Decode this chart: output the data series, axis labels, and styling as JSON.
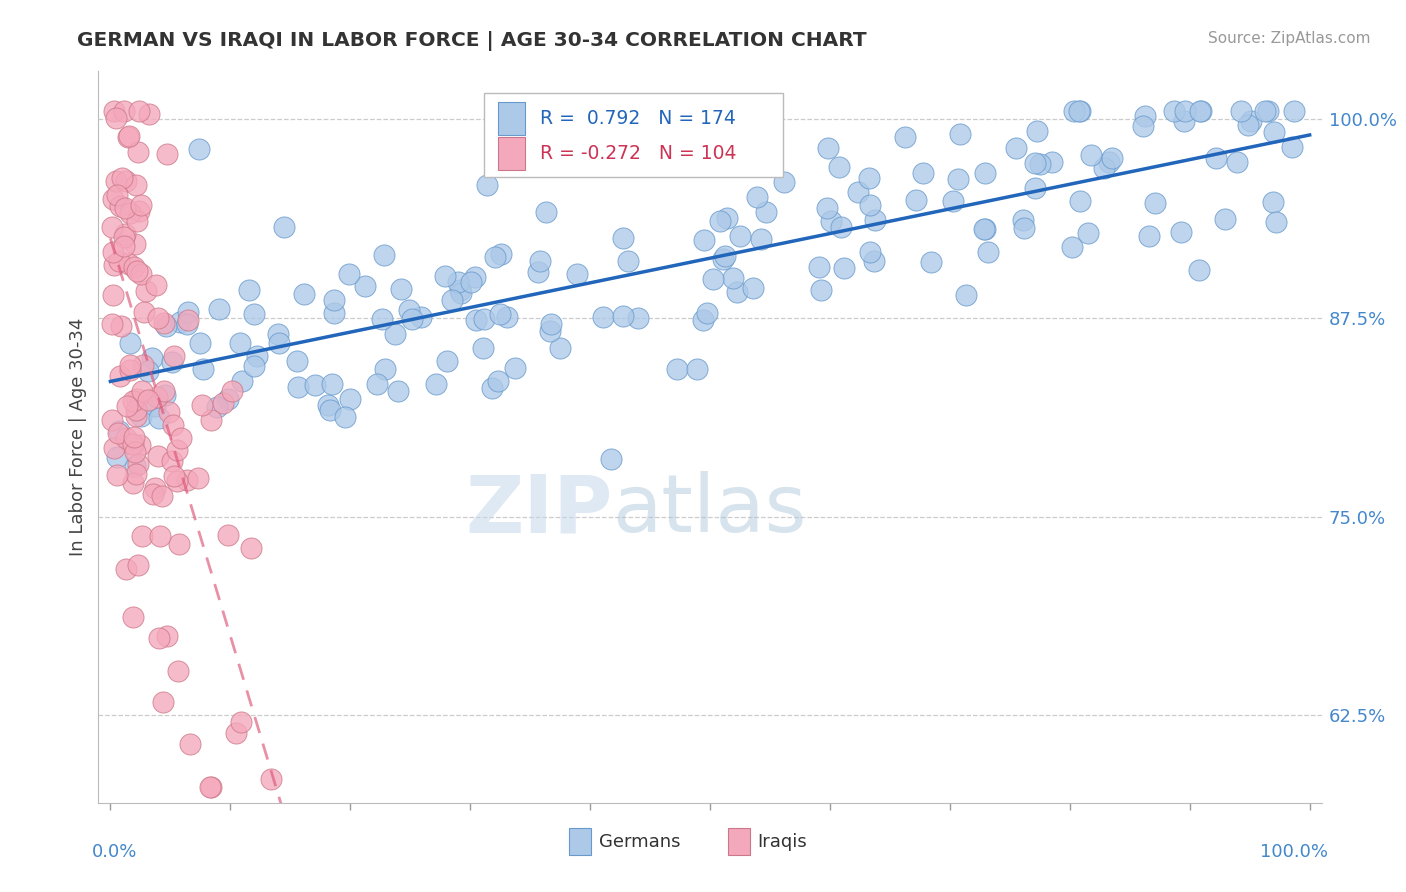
{
  "title": "GERMAN VS IRAQI IN LABOR FORCE | AGE 30-34 CORRELATION CHART",
  "source": "Source: ZipAtlas.com",
  "ylabel": "In Labor Force | Age 30-34",
  "ytick_labels": [
    "62.5%",
    "75.0%",
    "87.5%",
    "100.0%"
  ],
  "ytick_values": [
    0.625,
    0.75,
    0.875,
    1.0
  ],
  "xlim": [
    -0.01,
    1.01
  ],
  "ylim": [
    0.57,
    1.03
  ],
  "legend_german_R": "0.792",
  "legend_german_N": "174",
  "legend_iraqi_R": "-0.272",
  "legend_iraqi_N": "104",
  "german_color": "#adc9e8",
  "iraqi_color": "#f4a8bb",
  "german_edge_color": "#6699cc",
  "iraqi_edge_color": "#cc7788",
  "german_line_color": "#2266bb",
  "iraqi_line_color": "#dd5577",
  "background_color": "#ffffff",
  "n_german": 174,
  "n_iraqi": 104,
  "seed_german": 42,
  "seed_iraqi": 7
}
